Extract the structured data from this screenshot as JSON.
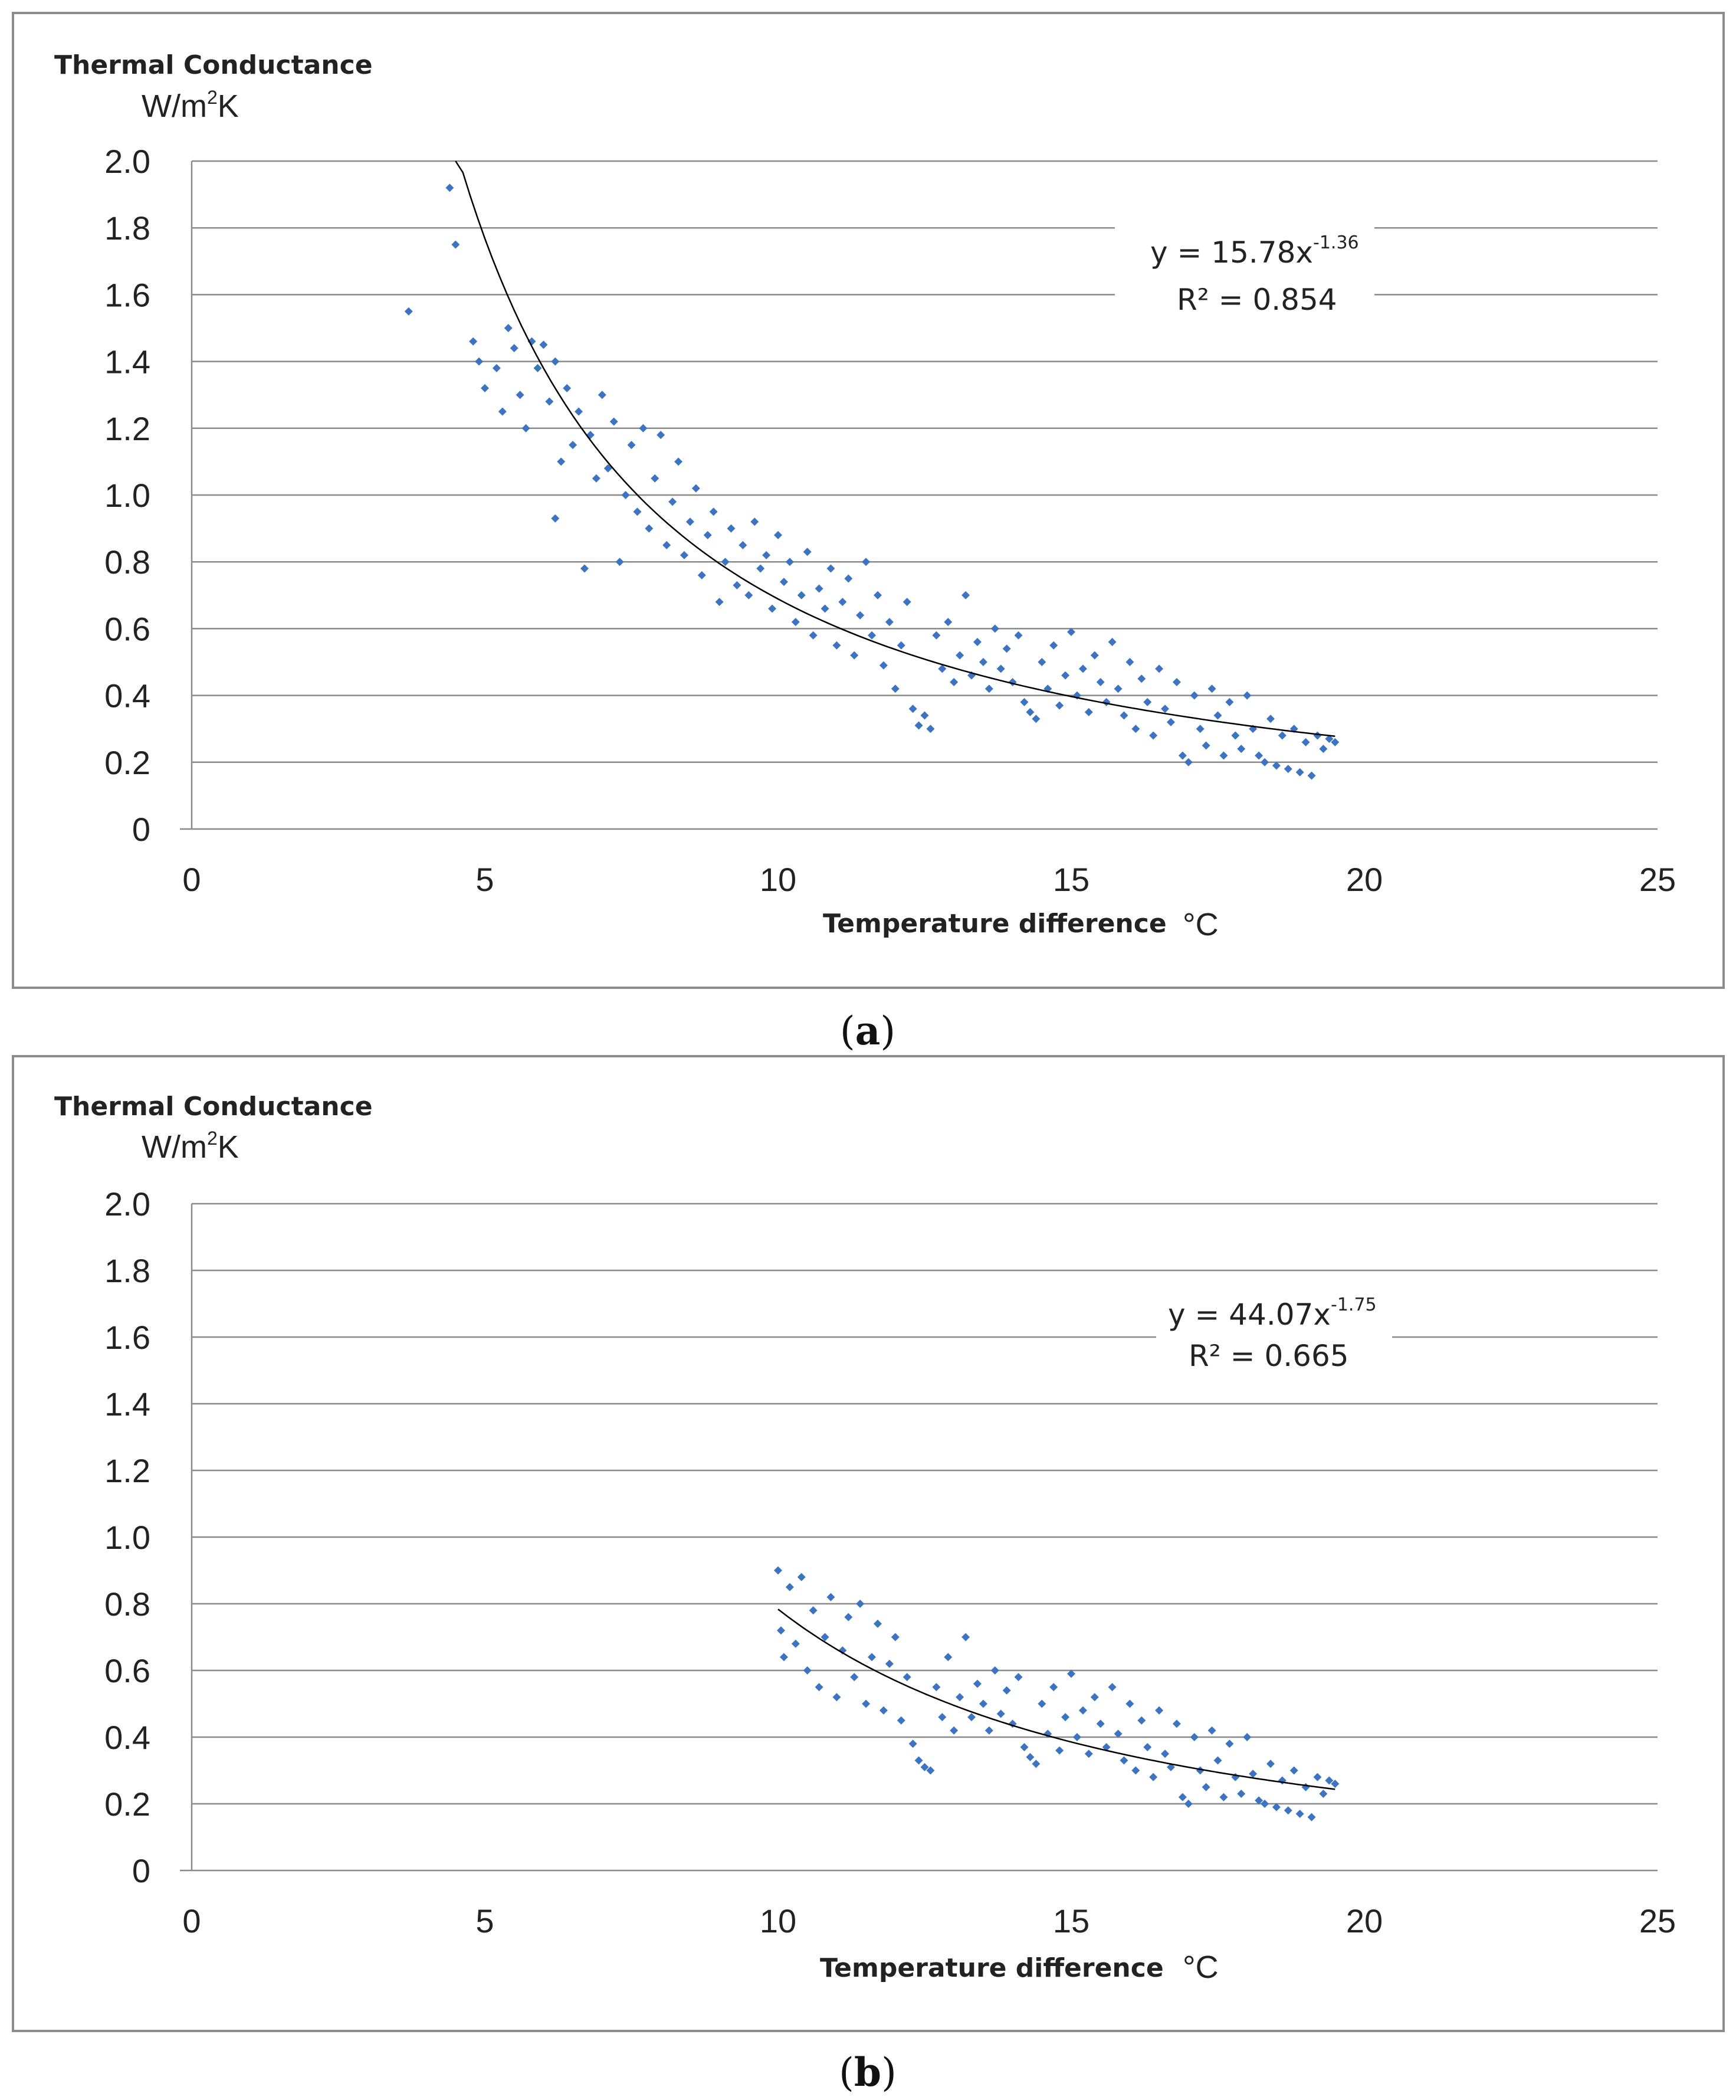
{
  "caption_open": "(",
  "caption_close": ")",
  "chart_data": [
    {
      "type": "scatter",
      "panel_label": "a",
      "ylabel_line1": "Thermal Conductance",
      "ylabel_unit_prefix": "W/m",
      "ylabel_unit_sup": "2",
      "ylabel_unit_suffix": "K",
      "xlabel": "Temperature difference",
      "xlabel_unit": "°C",
      "xlim": [
        0,
        25
      ],
      "ylim": [
        0,
        2.0
      ],
      "xticks": [
        "0",
        "5",
        "10",
        "15",
        "20",
        "25"
      ],
      "yticks": [
        "0",
        "0.2",
        "0.4",
        "0.6",
        "0.8",
        "1.0",
        "1.2",
        "1.4",
        "1.6",
        "1.8",
        "2.0"
      ],
      "grid": true,
      "legend": "none",
      "point_color": "#3d74c1",
      "trendline": {
        "type": "power",
        "coefficient": 15.78,
        "exponent": -1.36,
        "x_range": [
          4.5,
          19.5
        ],
        "equation_prefix": "y = 15.78x",
        "equation_exponent": "-1.36",
        "r2_text": "R² = 0.854"
      },
      "points": [
        [
          3.7,
          1.55
        ],
        [
          4.4,
          1.92
        ],
        [
          4.5,
          1.75
        ],
        [
          4.8,
          1.46
        ],
        [
          4.9,
          1.4
        ],
        [
          5.0,
          1.32
        ],
        [
          5.2,
          1.38
        ],
        [
          5.3,
          1.25
        ],
        [
          5.4,
          1.5
        ],
        [
          5.5,
          1.44
        ],
        [
          5.6,
          1.3
        ],
        [
          5.7,
          1.2
        ],
        [
          5.8,
          1.46
        ],
        [
          5.9,
          1.38
        ],
        [
          6.0,
          1.45
        ],
        [
          6.1,
          1.28
        ],
        [
          6.2,
          1.4
        ],
        [
          6.2,
          0.93
        ],
        [
          6.3,
          1.1
        ],
        [
          6.4,
          1.32
        ],
        [
          6.5,
          1.15
        ],
        [
          6.6,
          1.25
        ],
        [
          6.7,
          0.78
        ],
        [
          6.8,
          1.18
        ],
        [
          6.9,
          1.05
        ],
        [
          7.0,
          1.3
        ],
        [
          7.1,
          1.08
        ],
        [
          7.2,
          1.22
        ],
        [
          7.3,
          0.8
        ],
        [
          7.4,
          1.0
        ],
        [
          7.5,
          1.15
        ],
        [
          7.6,
          0.95
        ],
        [
          7.7,
          1.2
        ],
        [
          7.8,
          0.9
        ],
        [
          7.9,
          1.05
        ],
        [
          8.0,
          1.18
        ],
        [
          8.1,
          0.85
        ],
        [
          8.2,
          0.98
        ],
        [
          8.3,
          1.1
        ],
        [
          8.4,
          0.82
        ],
        [
          8.5,
          0.92
        ],
        [
          8.6,
          1.02
        ],
        [
          8.7,
          0.76
        ],
        [
          8.8,
          0.88
        ],
        [
          8.9,
          0.95
        ],
        [
          9.0,
          0.68
        ],
        [
          9.1,
          0.8
        ],
        [
          9.2,
          0.9
        ],
        [
          9.3,
          0.73
        ],
        [
          9.4,
          0.85
        ],
        [
          9.5,
          0.7
        ],
        [
          9.6,
          0.92
        ],
        [
          9.7,
          0.78
        ],
        [
          9.8,
          0.82
        ],
        [
          9.9,
          0.66
        ],
        [
          10.0,
          0.88
        ],
        [
          10.1,
          0.74
        ],
        [
          10.2,
          0.8
        ],
        [
          10.3,
          0.62
        ],
        [
          10.4,
          0.7
        ],
        [
          10.5,
          0.83
        ],
        [
          10.6,
          0.58
        ],
        [
          10.7,
          0.72
        ],
        [
          10.8,
          0.66
        ],
        [
          10.9,
          0.78
        ],
        [
          11.0,
          0.55
        ],
        [
          11.1,
          0.68
        ],
        [
          11.2,
          0.75
        ],
        [
          11.3,
          0.52
        ],
        [
          11.4,
          0.64
        ],
        [
          11.5,
          0.8
        ],
        [
          11.6,
          0.58
        ],
        [
          11.7,
          0.7
        ],
        [
          11.8,
          0.49
        ],
        [
          11.9,
          0.62
        ],
        [
          12.0,
          0.42
        ],
        [
          12.1,
          0.55
        ],
        [
          12.2,
          0.68
        ],
        [
          12.3,
          0.36
        ],
        [
          12.4,
          0.31
        ],
        [
          12.5,
          0.34
        ],
        [
          12.6,
          0.3
        ],
        [
          12.7,
          0.58
        ],
        [
          12.8,
          0.48
        ],
        [
          12.9,
          0.62
        ],
        [
          13.0,
          0.44
        ],
        [
          13.1,
          0.52
        ],
        [
          13.2,
          0.7
        ],
        [
          13.3,
          0.46
        ],
        [
          13.4,
          0.56
        ],
        [
          13.5,
          0.5
        ],
        [
          13.6,
          0.42
        ],
        [
          13.7,
          0.6
        ],
        [
          13.8,
          0.48
        ],
        [
          13.9,
          0.54
        ],
        [
          14.0,
          0.44
        ],
        [
          14.1,
          0.58
        ],
        [
          14.2,
          0.38
        ],
        [
          14.3,
          0.35
        ],
        [
          14.4,
          0.33
        ],
        [
          14.5,
          0.5
        ],
        [
          14.6,
          0.42
        ],
        [
          14.7,
          0.55
        ],
        [
          14.8,
          0.37
        ],
        [
          14.9,
          0.46
        ],
        [
          15.0,
          0.59
        ],
        [
          15.1,
          0.4
        ],
        [
          15.2,
          0.48
        ],
        [
          15.3,
          0.35
        ],
        [
          15.4,
          0.52
        ],
        [
          15.5,
          0.44
        ],
        [
          15.6,
          0.38
        ],
        [
          15.7,
          0.56
        ],
        [
          15.8,
          0.42
        ],
        [
          15.9,
          0.34
        ],
        [
          16.0,
          0.5
        ],
        [
          16.1,
          0.3
        ],
        [
          16.2,
          0.45
        ],
        [
          16.3,
          0.38
        ],
        [
          16.4,
          0.28
        ],
        [
          16.5,
          0.48
        ],
        [
          16.6,
          0.36
        ],
        [
          16.7,
          0.32
        ],
        [
          16.8,
          0.44
        ],
        [
          16.9,
          0.22
        ],
        [
          17.0,
          0.2
        ],
        [
          17.1,
          0.4
        ],
        [
          17.2,
          0.3
        ],
        [
          17.3,
          0.25
        ],
        [
          17.4,
          0.42
        ],
        [
          17.5,
          0.34
        ],
        [
          17.6,
          0.22
        ],
        [
          17.7,
          0.38
        ],
        [
          17.8,
          0.28
        ],
        [
          17.9,
          0.24
        ],
        [
          18.0,
          0.4
        ],
        [
          18.1,
          0.3
        ],
        [
          18.2,
          0.22
        ],
        [
          18.3,
          0.2
        ],
        [
          18.4,
          0.33
        ],
        [
          18.5,
          0.19
        ],
        [
          18.6,
          0.28
        ],
        [
          18.7,
          0.18
        ],
        [
          18.8,
          0.3
        ],
        [
          18.9,
          0.17
        ],
        [
          19.0,
          0.26
        ],
        [
          19.1,
          0.16
        ],
        [
          19.2,
          0.28
        ],
        [
          19.3,
          0.24
        ],
        [
          19.4,
          0.27
        ],
        [
          19.5,
          0.26
        ]
      ]
    },
    {
      "type": "scatter",
      "panel_label": "b",
      "ylabel_line1": "Thermal Conductance",
      "ylabel_unit_prefix": "W/m",
      "ylabel_unit_sup": "2",
      "ylabel_unit_suffix": "K",
      "xlabel": "Temperature difference",
      "xlabel_unit": "°C",
      "xlim": [
        0,
        25
      ],
      "ylim": [
        0,
        2.0
      ],
      "xticks": [
        "0",
        "5",
        "10",
        "15",
        "20",
        "25"
      ],
      "yticks": [
        "0",
        "0.2",
        "0.4",
        "0.6",
        "0.8",
        "1.0",
        "1.2",
        "1.4",
        "1.6",
        "1.8",
        "2.0"
      ],
      "grid": true,
      "legend": "none",
      "point_color": "#3d74c1",
      "trendline": {
        "type": "power",
        "coefficient": 44.07,
        "exponent": -1.75,
        "x_range": [
          10.0,
          19.5
        ],
        "equation_prefix": "y = 44.07x",
        "equation_exponent": "-1.75",
        "r2_text": "R² = 0.665"
      },
      "points": [
        [
          10.0,
          0.9
        ],
        [
          10.05,
          0.72
        ],
        [
          10.1,
          0.64
        ],
        [
          10.2,
          0.85
        ],
        [
          10.3,
          0.68
        ],
        [
          10.4,
          0.88
        ],
        [
          10.5,
          0.6
        ],
        [
          10.6,
          0.78
        ],
        [
          10.7,
          0.55
        ],
        [
          10.8,
          0.7
        ],
        [
          10.9,
          0.82
        ],
        [
          11.0,
          0.52
        ],
        [
          11.1,
          0.66
        ],
        [
          11.2,
          0.76
        ],
        [
          11.3,
          0.58
        ],
        [
          11.4,
          0.8
        ],
        [
          11.5,
          0.5
        ],
        [
          11.6,
          0.64
        ],
        [
          11.7,
          0.74
        ],
        [
          11.8,
          0.48
        ],
        [
          11.9,
          0.62
        ],
        [
          12.0,
          0.7
        ],
        [
          12.1,
          0.45
        ],
        [
          12.2,
          0.58
        ],
        [
          12.3,
          0.38
        ],
        [
          12.4,
          0.33
        ],
        [
          12.5,
          0.31
        ],
        [
          12.6,
          0.3
        ],
        [
          12.7,
          0.55
        ],
        [
          12.8,
          0.46
        ],
        [
          12.9,
          0.64
        ],
        [
          13.0,
          0.42
        ],
        [
          13.1,
          0.52
        ],
        [
          13.2,
          0.7
        ],
        [
          13.3,
          0.46
        ],
        [
          13.4,
          0.56
        ],
        [
          13.5,
          0.5
        ],
        [
          13.6,
          0.42
        ],
        [
          13.7,
          0.6
        ],
        [
          13.8,
          0.47
        ],
        [
          13.9,
          0.54
        ],
        [
          14.0,
          0.44
        ],
        [
          14.1,
          0.58
        ],
        [
          14.2,
          0.37
        ],
        [
          14.3,
          0.34
        ],
        [
          14.4,
          0.32
        ],
        [
          14.5,
          0.5
        ],
        [
          14.6,
          0.41
        ],
        [
          14.7,
          0.55
        ],
        [
          14.8,
          0.36
        ],
        [
          14.9,
          0.46
        ],
        [
          15.0,
          0.59
        ],
        [
          15.1,
          0.4
        ],
        [
          15.2,
          0.48
        ],
        [
          15.3,
          0.35
        ],
        [
          15.4,
          0.52
        ],
        [
          15.5,
          0.44
        ],
        [
          15.6,
          0.37
        ],
        [
          15.7,
          0.55
        ],
        [
          15.8,
          0.41
        ],
        [
          15.9,
          0.33
        ],
        [
          16.0,
          0.5
        ],
        [
          16.1,
          0.3
        ],
        [
          16.2,
          0.45
        ],
        [
          16.3,
          0.37
        ],
        [
          16.4,
          0.28
        ],
        [
          16.5,
          0.48
        ],
        [
          16.6,
          0.35
        ],
        [
          16.7,
          0.31
        ],
        [
          16.8,
          0.44
        ],
        [
          16.9,
          0.22
        ],
        [
          17.0,
          0.2
        ],
        [
          17.1,
          0.4
        ],
        [
          17.2,
          0.3
        ],
        [
          17.3,
          0.25
        ],
        [
          17.4,
          0.42
        ],
        [
          17.5,
          0.33
        ],
        [
          17.6,
          0.22
        ],
        [
          17.7,
          0.38
        ],
        [
          17.8,
          0.28
        ],
        [
          17.9,
          0.23
        ],
        [
          18.0,
          0.4
        ],
        [
          18.1,
          0.29
        ],
        [
          18.2,
          0.21
        ],
        [
          18.3,
          0.2
        ],
        [
          18.4,
          0.32
        ],
        [
          18.5,
          0.19
        ],
        [
          18.6,
          0.27
        ],
        [
          18.7,
          0.18
        ],
        [
          18.8,
          0.3
        ],
        [
          18.9,
          0.17
        ],
        [
          19.0,
          0.25
        ],
        [
          19.1,
          0.16
        ],
        [
          19.2,
          0.28
        ],
        [
          19.3,
          0.23
        ],
        [
          19.4,
          0.27
        ],
        [
          19.5,
          0.26
        ]
      ]
    }
  ]
}
